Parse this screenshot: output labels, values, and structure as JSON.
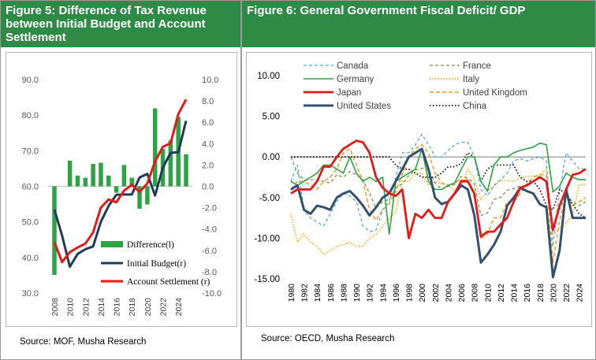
{
  "colors": {
    "header_bg": "#2e8b46",
    "difference": "#2ca444",
    "initial_budget": "#1f3b5c",
    "account_settlement": "#e61919",
    "canada": "#4aa3e0",
    "germany": "#2ca444",
    "japan": "#e61919",
    "united_states": "#34506f",
    "france": "#8a8a4a",
    "italy": "#f2b61c",
    "united_kingdom": "#f2961c",
    "china": "#111111"
  },
  "figure5": {
    "title": "Figure 5: Difference of Tax Revenue between Initial Budget and Account Settlement",
    "source": "Source: MOF, Musha Research"
  },
  "figure6": {
    "title": "Figure 6: General Government Fiscal Deficit/ GDP",
    "source": "Source: OECD, Musha Research"
  },
  "chart_data": [
    {
      "type": "bar",
      "title": "Figure 5: Difference of Tax Revenue between Initial Budget and Account Settlement",
      "legend_position": "bottom-right",
      "x": [
        2008,
        2009,
        2010,
        2011,
        2012,
        2013,
        2014,
        2015,
        2016,
        2017,
        2018,
        2019,
        2020,
        2021,
        2022,
        2023,
        2024,
        2025
      ],
      "x_tick_labels": [
        "2008",
        "2010",
        "2012",
        "2014",
        "2016",
        "2018",
        "2020",
        "2022",
        "2024"
      ],
      "y_left_ticks": [
        "30.0",
        "40.0",
        "50.0",
        "60.0",
        "70.0",
        "80.0",
        "90.0"
      ],
      "y_left_lim": [
        30,
        90
      ],
      "y_right_ticks": [
        "-10.0",
        "-8.0",
        "-6.0",
        "-4.0",
        "-2.0",
        "0.0",
        "2.0",
        "4.0",
        "6.0",
        "8.0",
        "10.0"
      ],
      "y_right_lim": [
        -10,
        10
      ],
      "series": [
        {
          "name": "Difference(l)",
          "kind": "bar",
          "axis": "right",
          "values": [
            -8.3,
            null,
            2.4,
            1.0,
            0.8,
            2.1,
            2.2,
            1.0,
            -0.6,
            2.0,
            0.8,
            -2.1,
            -1.7,
            7.3,
            3.5,
            4.3,
            6.5,
            3.0
          ]
        },
        {
          "name": "Initial Budget(r)",
          "kind": "line",
          "axis": "left",
          "values": [
            53.5,
            46.1,
            37.4,
            41.0,
            42.3,
            43.1,
            50.0,
            54.5,
            57.6,
            57.7,
            57.7,
            62.5,
            63.5,
            57.4,
            65.2,
            69.4,
            69.6,
            78.4
          ]
        },
        {
          "name": "Account Settlement (r)",
          "kind": "line",
          "axis": "left",
          "values": [
            44.3,
            38.7,
            41.5,
            42.8,
            43.9,
            47.0,
            54.0,
            56.3,
            55.5,
            58.8,
            60.4,
            58.4,
            60.8,
            67.0,
            71.1,
            72.1,
            80.3,
            84.4
          ]
        }
      ]
    },
    {
      "type": "line",
      "title": "Figure 6: General Government Fiscal Deficit/ GDP",
      "legend_position": "top",
      "x": [
        1980,
        1981,
        1982,
        1983,
        1984,
        1985,
        1986,
        1987,
        1988,
        1989,
        1990,
        1991,
        1992,
        1993,
        1994,
        1995,
        1996,
        1997,
        1998,
        1999,
        2000,
        2001,
        2002,
        2003,
        2004,
        2005,
        2006,
        2007,
        2008,
        2009,
        2010,
        2011,
        2012,
        2013,
        2014,
        2015,
        2016,
        2017,
        2018,
        2019,
        2020,
        2021,
        2022,
        2023,
        2024,
        2025
      ],
      "x_tick_labels": [
        "1980",
        "1982",
        "1984",
        "1986",
        "1988",
        "1990",
        "1992",
        "1994",
        "1996",
        "1998",
        "2000",
        "2002",
        "2004",
        "2006",
        "2008",
        "2010",
        "2012",
        "2014",
        "2016",
        "2018",
        "2020",
        "2022",
        "2024"
      ],
      "y_ticks": [
        "10.00",
        "5.00",
        "0.00",
        "-5.00",
        "-10.00",
        "-15.00"
      ],
      "ylim": [
        -15,
        10
      ],
      "series": [
        {
          "name": "Canada",
          "style": "dashed",
          "values": [
            -3.0,
            -1.0,
            -6.5,
            -7.5,
            -8.0,
            -8.5,
            -7.0,
            -5.5,
            -4.5,
            -4.8,
            -5.5,
            -8.5,
            -9.2,
            -9.0,
            -6.5,
            -5.5,
            -2.5,
            0.5,
            0.5,
            1.5,
            2.8,
            1.5,
            0.0,
            0.0,
            0.8,
            1.5,
            1.8,
            1.8,
            0.0,
            -4.0,
            -4.8,
            -3.5,
            -2.8,
            -2.0,
            -0.5,
            -0.2,
            -0.5,
            -0.2,
            0.0,
            -0.5,
            -11.0,
            -4.2,
            0.5,
            -0.5,
            -1.5,
            -1.5
          ]
        },
        {
          "name": "Germany",
          "style": "solid",
          "values": [
            -3.0,
            -3.5,
            -3.0,
            -2.5,
            -2.0,
            -1.0,
            -1.0,
            -1.5,
            -2.0,
            0.0,
            -2.0,
            -3.0,
            -2.5,
            -3.0,
            -2.5,
            -9.5,
            -3.0,
            -2.5,
            -2.0,
            -1.5,
            1.0,
            -3.0,
            -4.0,
            -4.0,
            -3.5,
            -3.2,
            -1.5,
            0.0,
            0.0,
            -3.0,
            -4.2,
            -1.0,
            0.0,
            0.0,
            0.5,
            0.8,
            1.0,
            1.2,
            1.7,
            1.5,
            -4.3,
            -3.6,
            -2.0,
            -2.5,
            -2.8,
            -2.8
          ]
        },
        {
          "name": "Japan",
          "style": "thick",
          "values": [
            -4.5,
            -4.0,
            -4.0,
            -4.0,
            -3.0,
            -1.2,
            -1.2,
            0.0,
            1.0,
            1.5,
            2.0,
            1.8,
            0.5,
            -2.5,
            -3.8,
            -4.5,
            -4.8,
            -4.0,
            -10.0,
            -7.0,
            -7.5,
            -6.5,
            -7.5,
            -7.5,
            -5.5,
            -4.5,
            -3.0,
            -3.0,
            -4.5,
            -9.8,
            -9.2,
            -9.2,
            -8.3,
            -7.5,
            -5.5,
            -3.8,
            -3.5,
            -3.0,
            -2.5,
            -3.0,
            -9.0,
            -6.0,
            -4.0,
            -2.2,
            -2.0,
            -1.5
          ]
        },
        {
          "name": "United States",
          "style": "thick",
          "values": [
            -4.0,
            -3.5,
            -6.5,
            -7.0,
            -6.0,
            -6.2,
            -6.5,
            -5.0,
            -4.5,
            -4.2,
            -5.0,
            -6.0,
            -7.2,
            -6.2,
            -5.0,
            -4.5,
            -3.0,
            -1.5,
            0.0,
            0.5,
            1.0,
            -1.5,
            -5.0,
            -5.8,
            -5.5,
            -4.5,
            -3.5,
            -4.0,
            -7.2,
            -13.0,
            -12.0,
            -10.8,
            -9.2,
            -6.0,
            -5.0,
            -3.8,
            -4.2,
            -4.5,
            -5.8,
            -6.2,
            -14.8,
            -11.5,
            -4.0,
            -7.5,
            -7.5,
            -7.5
          ]
        },
        {
          "name": "France",
          "style": "dashed",
          "values": [
            0.0,
            -2.0,
            -2.8,
            -2.8,
            -2.8,
            -3.0,
            -3.2,
            -2.2,
            -2.5,
            -1.8,
            -2.2,
            -2.8,
            -4.5,
            -6.3,
            -5.5,
            -5.2,
            -3.8,
            -3.3,
            -2.3,
            -1.6,
            -1.4,
            -1.5,
            -3.2,
            -4.0,
            -3.6,
            -3.4,
            -2.4,
            -2.6,
            -3.3,
            -7.2,
            -6.9,
            -5.2,
            -5.0,
            -4.1,
            -3.9,
            -3.6,
            -3.6,
            -3.0,
            -2.3,
            -3.1,
            -9.0,
            -6.5,
            -4.7,
            -5.5,
            -6.0,
            -5.5
          ]
        },
        {
          "name": "Italy",
          "style": "dotted",
          "values": [
            -7.0,
            -10.5,
            -9.5,
            -10.5,
            -11.0,
            -12.0,
            -11.5,
            -11.0,
            -10.8,
            -10.5,
            -11.0,
            -11.0,
            -10.0,
            -9.5,
            -8.5,
            -7.5,
            -6.8,
            -3.0,
            -3.0,
            -2.0,
            -2.0,
            -3.5,
            -3.0,
            -3.3,
            -3.5,
            -4.2,
            -3.5,
            -1.5,
            -2.7,
            -5.3,
            -4.2,
            -3.6,
            -2.9,
            -2.9,
            -3.0,
            -2.6,
            -2.4,
            -2.4,
            -2.2,
            -1.5,
            -9.5,
            -8.7,
            -8.1,
            -7.2,
            -3.4,
            -3.4
          ]
        },
        {
          "name": "United Kingdom",
          "style": "dashed",
          "values": [
            -4.0,
            -3.0,
            -3.0,
            -3.5,
            -4.0,
            -3.0,
            -2.5,
            -1.5,
            0.5,
            1.0,
            -1.0,
            -3.0,
            -6.5,
            -7.8,
            -6.5,
            -5.8,
            -4.2,
            -2.2,
            0.0,
            1.0,
            1.5,
            0.5,
            -2.0,
            -3.2,
            -3.5,
            -3.2,
            -2.8,
            -2.8,
            -5.0,
            -10.0,
            -9.5,
            -7.5,
            -7.5,
            -5.5,
            -5.5,
            -4.5,
            -3.3,
            -2.5,
            -2.2,
            -2.2,
            -13.0,
            -7.8,
            -4.7,
            -6.0,
            -5.5,
            -5.0
          ]
        },
        {
          "name": "China",
          "style": "dotted",
          "values": [
            0.0,
            0.0,
            0.0,
            0.0,
            0.0,
            0.0,
            0.0,
            0.0,
            0.0,
            0.0,
            0.0,
            0.0,
            0.0,
            0.0,
            0.0,
            0.0,
            -1.0,
            -1.5,
            -1.5,
            -2.0,
            -2.5,
            -2.5,
            -2.5,
            -2.0,
            -1.2,
            -1.2,
            -0.8,
            0.5,
            0.0,
            -3.0,
            -1.5,
            -1.0,
            -1.0,
            -1.0,
            -1.0,
            -2.5,
            -3.0,
            -3.0,
            -4.0,
            -6.0,
            -6.5,
            -4.0,
            -4.5,
            -5.8,
            -7.0,
            -7.5
          ]
        }
      ]
    }
  ]
}
